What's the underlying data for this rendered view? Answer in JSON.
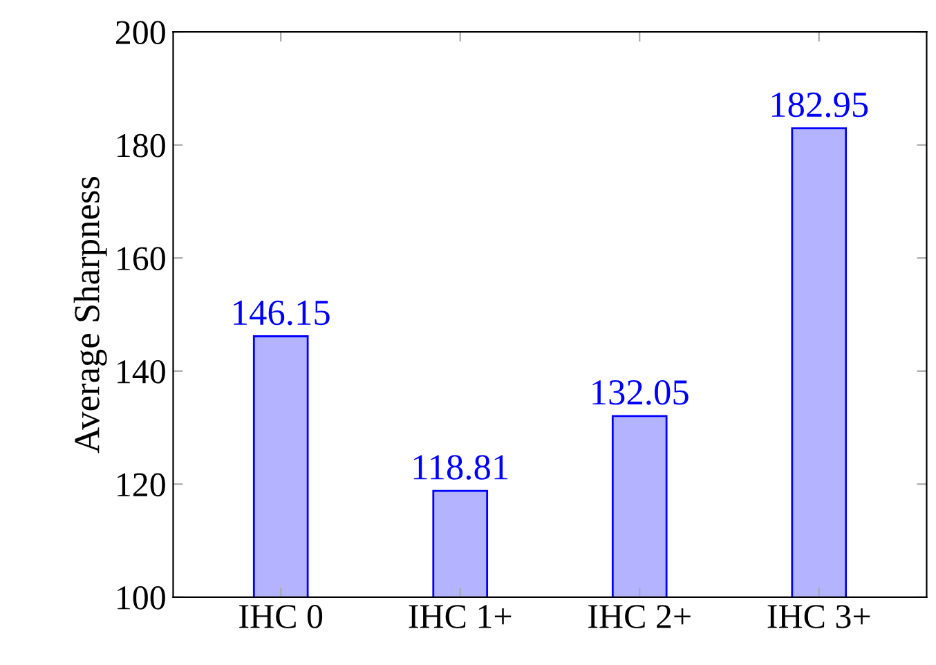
{
  "chart_data": {
    "type": "bar",
    "ylabel": "Average Sharpness",
    "categories": [
      "IHC 0",
      "IHC 1+",
      "IHC 2+",
      "IHC 3+"
    ],
    "series": [
      {
        "color": "#b3b3ff",
        "values": [
          146.15,
          118.81,
          132.05,
          182.95
        ]
      }
    ],
    "ylim": [
      100,
      200
    ],
    "yticks": [
      100,
      120,
      140,
      160,
      180,
      200
    ],
    "data_labels": true,
    "grid": false,
    "legend": false
  }
}
